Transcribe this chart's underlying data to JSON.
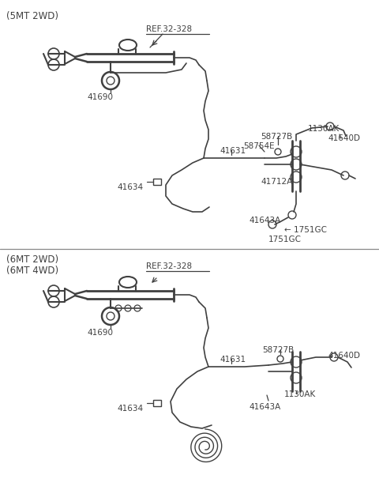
{
  "bg_color": "#ffffff",
  "line_color": "#404040",
  "text_color": "#404040",
  "top_label": "(5MT 2WD)",
  "bottom_label1": "(6MT 2WD)",
  "bottom_label2": "(6MT 4WD)",
  "ref_label": "REF.32-328",
  "figsize": [
    4.8,
    6.2
  ],
  "dpi": 100
}
